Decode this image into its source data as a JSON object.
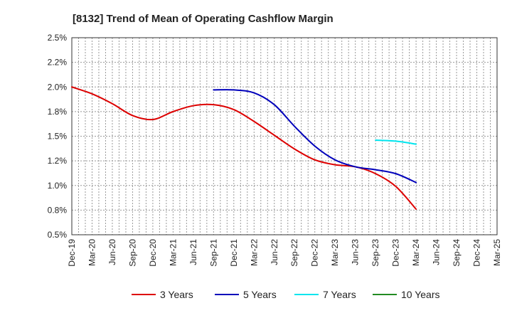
{
  "chart_data": {
    "type": "line",
    "title": "[8132]  Trend of Mean of Operating Cashflow Margin",
    "xlabel": "",
    "ylabel": "",
    "ylim": [
      0.5,
      2.5
    ],
    "yticks": [
      "0.5%",
      "0.8%",
      "1.0%",
      "1.2%",
      "1.5%",
      "1.8%",
      "2.0%",
      "2.2%",
      "2.5%"
    ],
    "categories": [
      "Dec-19",
      "Mar-20",
      "Jun-20",
      "Sep-20",
      "Dec-20",
      "Mar-21",
      "Jun-21",
      "Sep-21",
      "Dec-21",
      "Mar-22",
      "Jun-22",
      "Sep-22",
      "Dec-22",
      "Mar-23",
      "Jun-23",
      "Sep-23",
      "Dec-23",
      "Mar-24",
      "Jun-24",
      "Sep-24",
      "Dec-24",
      "Mar-25"
    ],
    "grid": true,
    "legend_position": "bottom",
    "series": [
      {
        "name": "3 Years",
        "color": "#dd0000",
        "values": [
          2.0,
          1.93,
          1.83,
          1.71,
          1.67,
          1.75,
          1.81,
          1.82,
          1.77,
          1.65,
          1.51,
          1.37,
          1.26,
          1.21,
          1.19,
          1.12,
          0.99,
          0.76,
          null,
          null,
          null,
          null
        ]
      },
      {
        "name": "5 Years",
        "color": "#0000bb",
        "values": [
          null,
          null,
          null,
          null,
          null,
          null,
          null,
          1.97,
          1.97,
          1.94,
          1.82,
          1.6,
          1.4,
          1.26,
          1.19,
          1.16,
          1.12,
          1.03,
          null,
          null,
          null,
          null
        ]
      },
      {
        "name": "7 Years",
        "color": "#00e5ee",
        "values": [
          null,
          null,
          null,
          null,
          null,
          null,
          null,
          null,
          null,
          null,
          null,
          null,
          null,
          null,
          null,
          1.46,
          1.45,
          1.42,
          null,
          null,
          null,
          null
        ]
      },
      {
        "name": "10 Years",
        "color": "#228b22",
        "values": [
          null,
          null,
          null,
          null,
          null,
          null,
          null,
          null,
          null,
          null,
          null,
          null,
          null,
          null,
          null,
          null,
          null,
          null,
          null,
          null,
          null,
          null
        ]
      }
    ]
  }
}
